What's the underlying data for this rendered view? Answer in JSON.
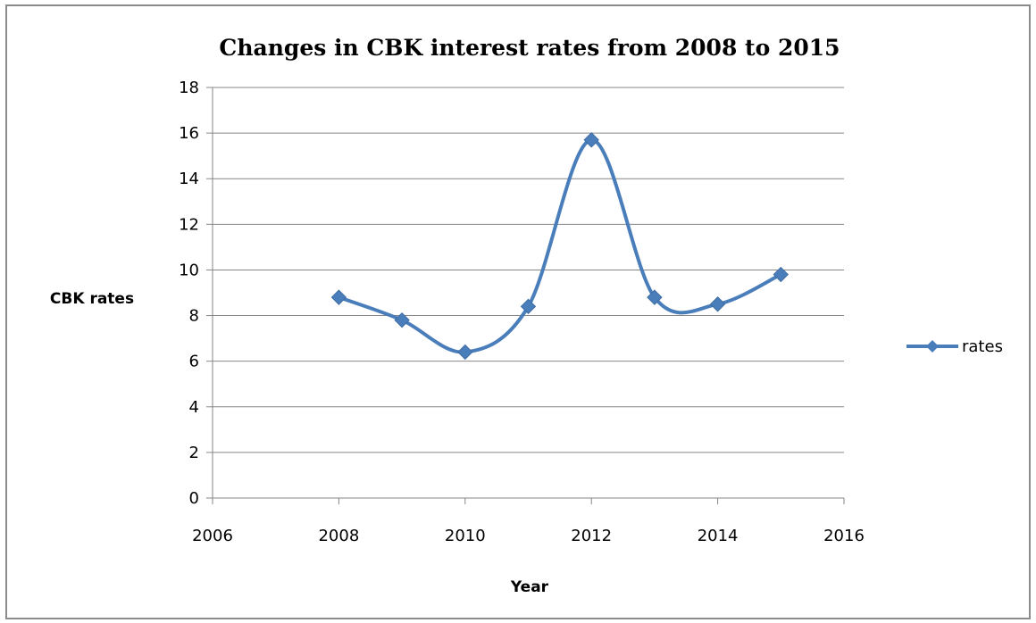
{
  "chart_data": {
    "type": "scatter",
    "title": "Changes in CBK interest rates from 2008 to 2015",
    "xlabel": "Year",
    "ylabel": "CBK rates",
    "xlim": [
      2006,
      2016
    ],
    "ylim": [
      0,
      18
    ],
    "x_ticks": [
      2006,
      2008,
      2010,
      2012,
      2014,
      2016
    ],
    "y_ticks": [
      0,
      2,
      4,
      6,
      8,
      10,
      12,
      14,
      16,
      18
    ],
    "grid": "horizontal",
    "legend_position": "right",
    "smooth_lines": true,
    "series": [
      {
        "name": "rates",
        "color": "#4a7ebb",
        "marker": "diamond",
        "x": [
          2008,
          2009,
          2010,
          2011,
          2012,
          2013,
          2014,
          2015
        ],
        "y": [
          8.8,
          7.8,
          6.4,
          8.4,
          15.7,
          8.8,
          8.5,
          9.8
        ]
      }
    ]
  }
}
